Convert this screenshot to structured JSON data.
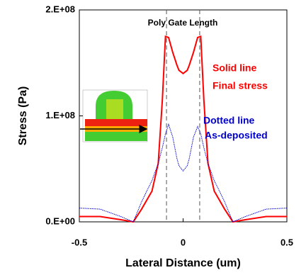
{
  "chart_data": {
    "type": "line",
    "xlabel": "Lateral Distance (um)",
    "ylabel": "Stress (Pa)",
    "x": [
      -0.5,
      -0.4,
      -0.3,
      -0.24,
      -0.2,
      -0.15,
      -0.12,
      -0.1,
      -0.085,
      -0.07,
      -0.05,
      -0.03,
      -0.02,
      0,
      0.02,
      0.03,
      0.05,
      0.07,
      0.085,
      0.1,
      0.12,
      0.15,
      0.2,
      0.24,
      0.3,
      0.4,
      0.5
    ],
    "series": [
      {
        "name": "Final stress",
        "color": "#ff0000",
        "style": "solid",
        "values": [
          5000000,
          5000000,
          2000000,
          0,
          12000000,
          29000000,
          55000000,
          115000000,
          175000000,
          174000000,
          160000000,
          148000000,
          143000000,
          140000000,
          143000000,
          148000000,
          160000000,
          174000000,
          175000000,
          115000000,
          55000000,
          29000000,
          12000000,
          0,
          2000000,
          5000000,
          5000000
        ]
      },
      {
        "name": "As-deposited",
        "color": "#0000cc",
        "style": "dotted",
        "values": [
          13000000,
          12000000,
          5000000,
          0,
          19000000,
          39000000,
          55000000,
          70000000,
          83000000,
          92000000,
          80000000,
          60000000,
          53000000,
          48000000,
          53000000,
          60000000,
          80000000,
          90000000,
          83000000,
          70000000,
          55000000,
          39000000,
          19000000,
          0,
          5000000,
          12000000,
          13000000
        ]
      }
    ],
    "xlim": [
      -0.5,
      0.5
    ],
    "xticks": [
      -0.5,
      0,
      0.5
    ],
    "ylim": [
      0,
      200000000
    ],
    "yticks": [
      {
        "value": 0,
        "label": "0.E+00"
      },
      {
        "value": 100000000,
        "label": "1.E+08"
      },
      {
        "value": 200000000,
        "label": "2.E+08"
      }
    ],
    "vlines": [
      -0.08,
      0.08
    ],
    "annotations": [
      {
        "text": "Poly Gate Length",
        "color": "#000000"
      },
      {
        "text": "Solid line",
        "color": "#ff0000"
      },
      {
        "text": "Final stress",
        "color": "#ff0000"
      },
      {
        "text": "Dotted line",
        "color": "#0000cc"
      },
      {
        "text": "As-deposited",
        "color": "#0000cc"
      }
    ]
  }
}
